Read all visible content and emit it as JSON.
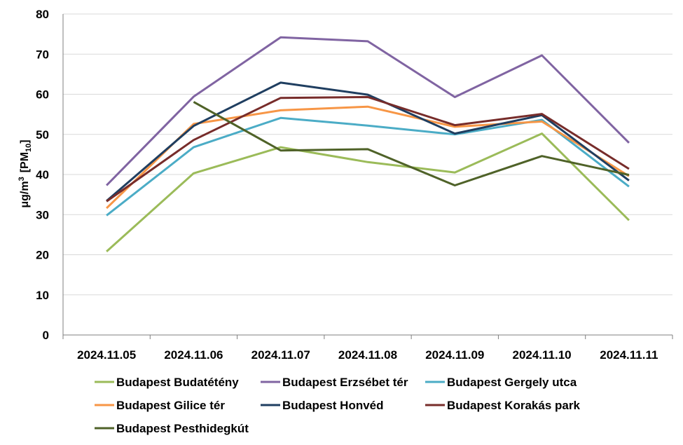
{
  "chart_data": {
    "type": "line",
    "title": "",
    "xlabel": "",
    "ylabel": {
      "prefix": "μg/m",
      "superscript": "3",
      "bracket_open": "[PM",
      "subscript": "10",
      "bracket_close": "]"
    },
    "ylim": [
      0,
      80
    ],
    "yticks": [
      0,
      10,
      20,
      30,
      40,
      50,
      60,
      70,
      80
    ],
    "grid": true,
    "legend_position": "bottom",
    "categories": [
      "2024.11.05",
      "2024.11.06",
      "2024.11.07",
      "2024.11.08",
      "2024.11.09",
      "2024.11.10",
      "2024.11.11"
    ],
    "series": [
      {
        "name": "Budapest Budatétény",
        "color": "#9BBB59",
        "values": [
          20.8,
          40.3,
          46.8,
          43.1,
          40.5,
          50.2,
          28.6
        ]
      },
      {
        "name": "Budapest Erzsébet tér",
        "color": "#8064A2",
        "values": [
          37.3,
          59.4,
          74.2,
          73.2,
          59.3,
          69.7,
          47.9
        ]
      },
      {
        "name": "Budapest Gergely utca",
        "color": "#4BACC6",
        "values": [
          29.8,
          46.8,
          54.1,
          52.2,
          50.0,
          53.6,
          37.0
        ]
      },
      {
        "name": "Budapest Gilice tér",
        "color": "#F79646",
        "values": [
          31.6,
          52.6,
          56.0,
          56.9,
          51.9,
          53.2,
          39.6
        ]
      },
      {
        "name": "Budapest Honvéd",
        "color": "#1F3E60",
        "values": [
          33.4,
          52.1,
          62.9,
          59.9,
          50.2,
          54.8,
          38.5
        ]
      },
      {
        "name": "Budapest Korakás park",
        "color": "#772C2A",
        "values": [
          33.3,
          48.6,
          59.1,
          59.3,
          52.3,
          55.1,
          41.4
        ]
      },
      {
        "name": "Budapest Pesthidegkút",
        "color": "#4F6228",
        "values": [
          null,
          58.1,
          46.0,
          46.3,
          37.3,
          44.6,
          39.9
        ]
      }
    ]
  }
}
